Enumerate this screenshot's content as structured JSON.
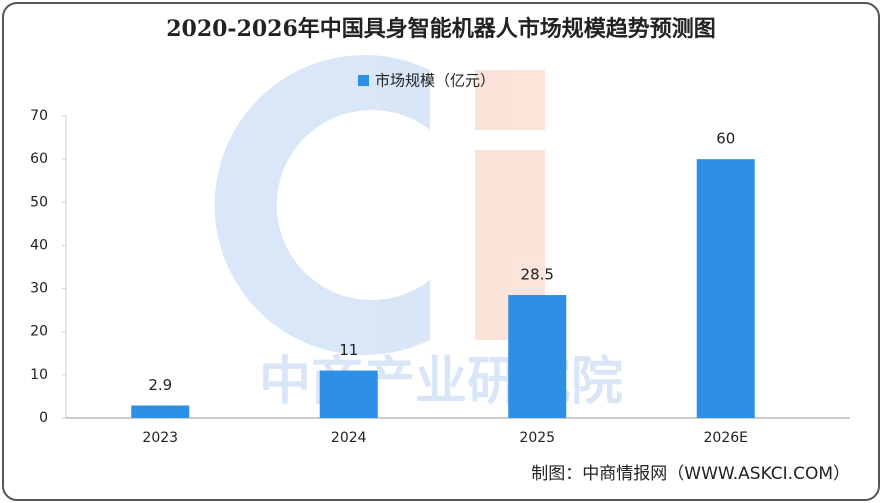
{
  "chart_data": {
    "type": "bar",
    "title": "2020-2026年中国具身智能机器人市场规模趋势预测图",
    "series": [
      {
        "name": "市场规模（亿元）",
        "color": "#2e8fe6",
        "values": [
          2.9,
          11,
          28.5,
          60
        ]
      }
    ],
    "categories": [
      "2023",
      "2024",
      "2025",
      "2026E"
    ],
    "ylim": [
      0,
      70
    ],
    "yticks": [
      0,
      10,
      20,
      30,
      40,
      50,
      60,
      70
    ],
    "grid": false,
    "legend": "top",
    "source": "制图：中商情报网（WWW.ASKCI.COM）",
    "watermark": "中商产业研究院"
  }
}
